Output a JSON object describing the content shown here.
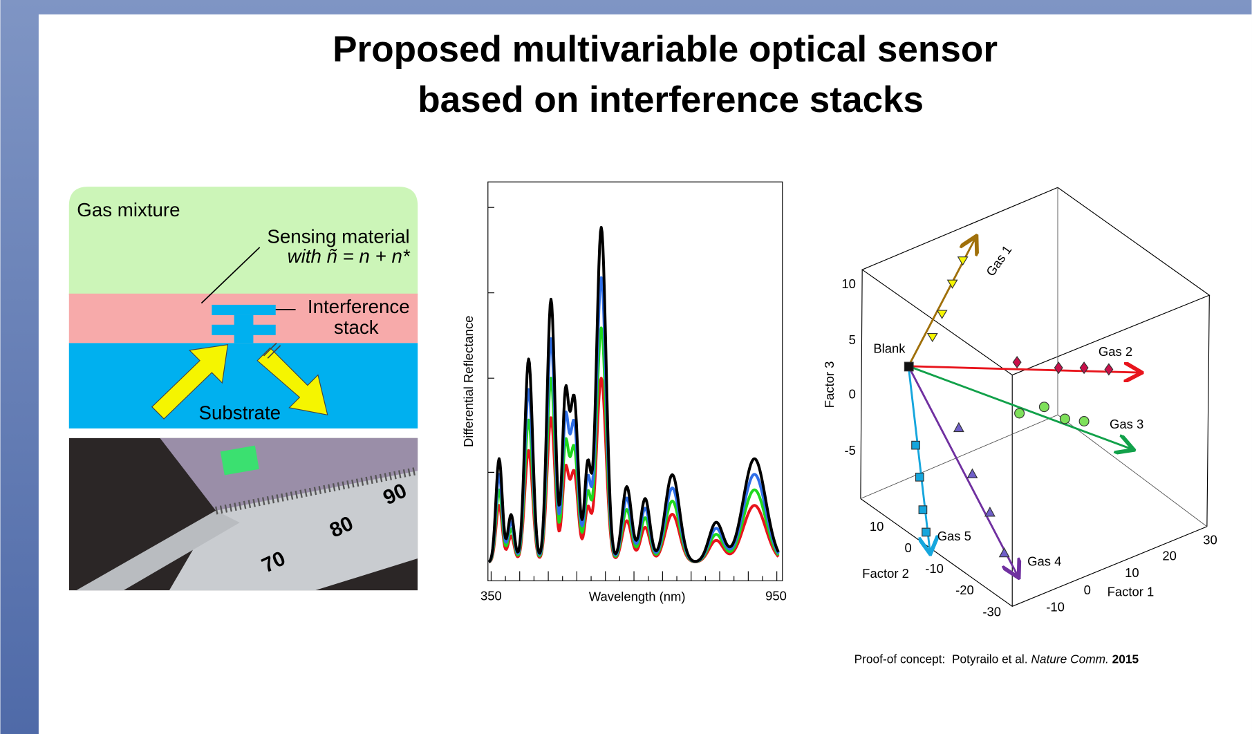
{
  "title": [
    "Proposed multivariable optical sensor",
    "based on interference stacks"
  ],
  "schematic": {
    "gas_mixture": "Gas mixture",
    "sensing_material": [
      "Sensing material",
      "with ñ = n + n*"
    ],
    "interference_stack": [
      "Interference",
      "stack"
    ],
    "substrate": "Substrate"
  },
  "photo": {
    "ruler_labels": [
      "70",
      "80",
      "90"
    ]
  },
  "spectrum": {
    "y_label": "Differential  Reflectance",
    "x_label": "Wavelength  (nm)",
    "x_tick_labels": [
      "350",
      "950"
    ]
  },
  "plot3d": {
    "factor3_label": "Factor  3",
    "factor3_ticks": [
      "10",
      "5",
      "0",
      "-5"
    ],
    "factor2_label": "Factor  2",
    "factor2_ticks": [
      "10",
      "0",
      "-10",
      "-20",
      "-30"
    ],
    "factor1_label": "Factor  1",
    "factor1_ticks": [
      "-10",
      "0",
      "10",
      "20",
      "30"
    ],
    "blank": "Blank",
    "gases": [
      "Gas 1",
      "Gas 2",
      "Gas 3",
      "Gas 4",
      "Gas 5"
    ]
  },
  "citation": {
    "prefix": "Proof-of concept:  Potyrailo et al. ",
    "journal": "Nature Comm.",
    "year": " 2015"
  }
}
